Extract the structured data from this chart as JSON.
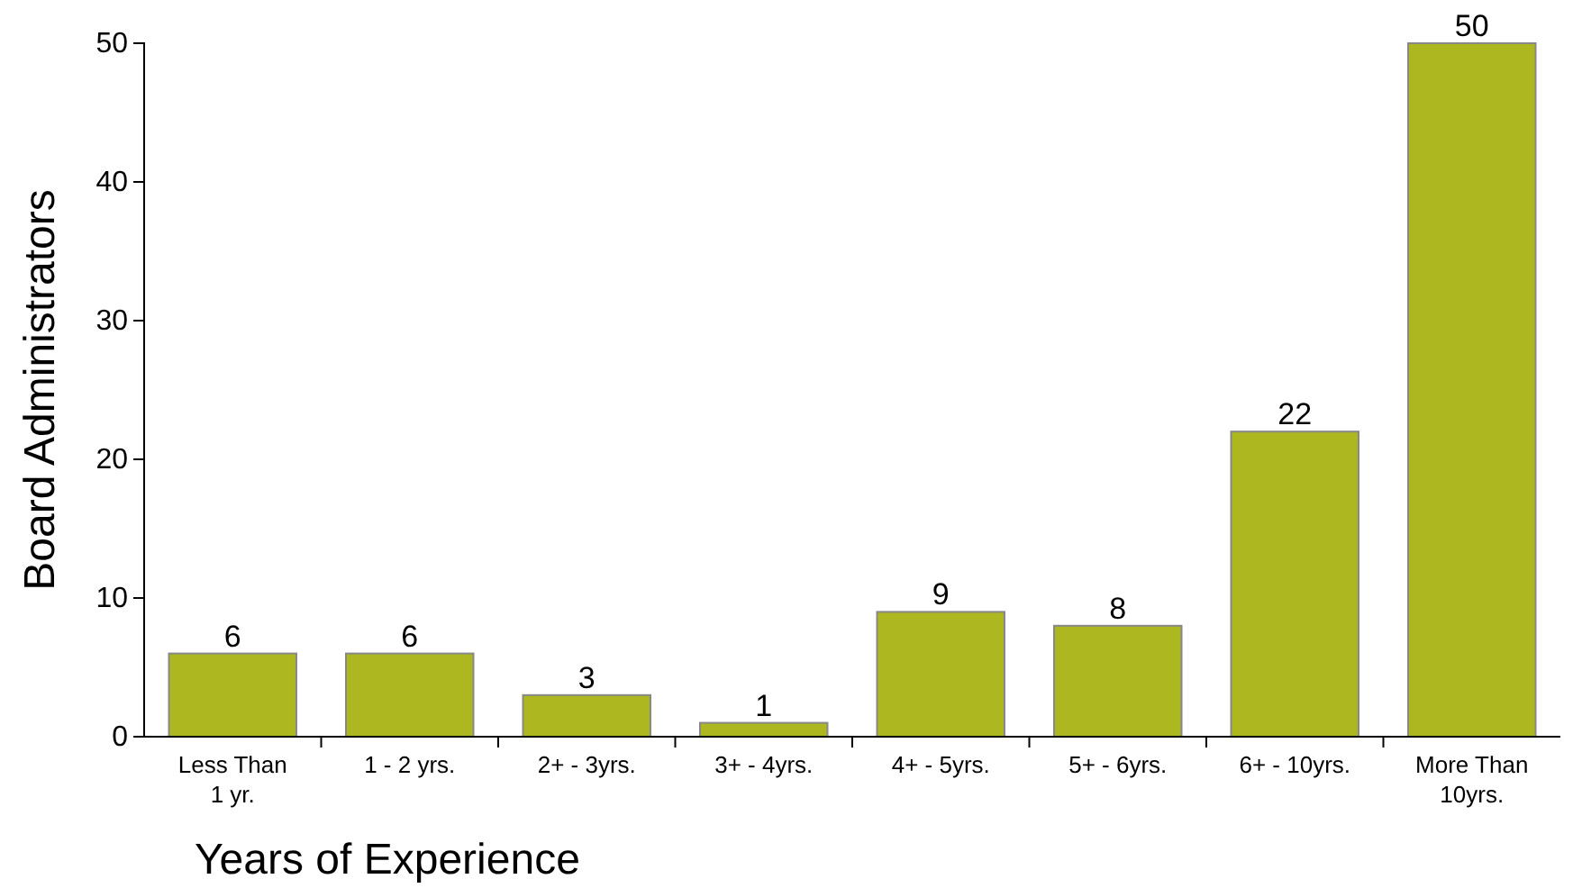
{
  "chart_data": {
    "type": "bar",
    "xlabel": "Years of Experience",
    "ylabel": "Board Administrators",
    "categories": [
      "Less Than 1 yr.",
      "1 - 2 yrs.",
      "2+ - 3yrs.",
      "3+ - 4yrs.",
      "4+ - 5yrs.",
      "5+ - 6yrs.",
      "6+ - 10yrs.",
      "More Than 10yrs."
    ],
    "values": [
      6,
      6,
      3,
      1,
      9,
      8,
      22,
      50
    ],
    "color": "#adb820",
    "ylim": [
      0,
      50
    ],
    "yticks": [
      0,
      10,
      20,
      30,
      40,
      50
    ],
    "grid": false,
    "data_labels": true
  }
}
